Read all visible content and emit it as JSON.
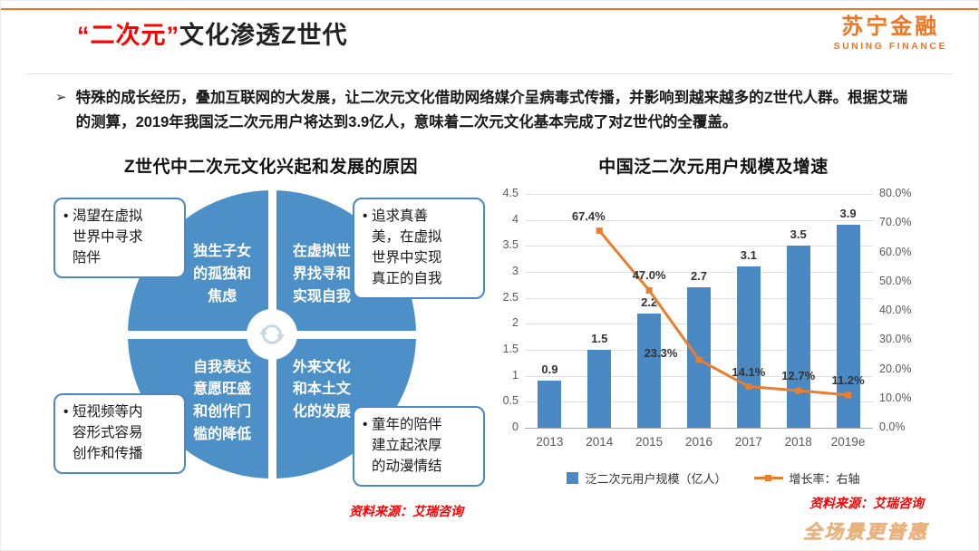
{
  "accent": {
    "orange": "#EE7623",
    "red": "#FF0000",
    "blue": "#4A89C4"
  },
  "header": {
    "title_highlight": "“二次元”",
    "title_rest": "文化渗透Z世代",
    "logo_cn": "苏宁金融",
    "logo_en": "SUNING FINANCE"
  },
  "intro": {
    "marker": "➢",
    "part1": "特殊的成长经历，叠加互联网的大发展，让二次元文化借助网络媒介呈病毒式传播，并影响到越来越多的Z世代人群。根据艾瑞的测算，2019年我国泛二次元用户将达到",
    "highlight": "3.9亿人",
    "part2": "，意味着二次元文化基本完成了对Z世代的全覆盖。"
  },
  "diagram": {
    "title": "Z世代中二次元文化兴起和发展的原因",
    "quadrants": {
      "top_left": "独生子女的孤独和焦虑",
      "top_right": "在虚拟世界找寻和实现自我",
      "bottom_left": "自我表达意愿旺盛和创作门槛的降低",
      "bottom_right": "外来文化和本土文化的发展"
    },
    "callouts": {
      "top_left": "渴望在虚拟世界中寻求陪伴",
      "top_right": "追求真善美，在虚拟世界中实现真正的自我",
      "bottom_left": "短视频等内容形式容易创作和传播",
      "bottom_right": "童年的陪伴建立起浓厚的动漫情结"
    },
    "source": "资料来源：艾瑞咨询"
  },
  "chart_data": {
    "type": "bar",
    "title": "中国泛二次元用户规模及增速",
    "categories": [
      "2013",
      "2014",
      "2015",
      "2016",
      "2017",
      "2018",
      "2019e"
    ],
    "series": [
      {
        "name": "泛二次元用户规模（亿人）",
        "kind": "bar",
        "axis": "left",
        "color": "#4A89C4",
        "values": [
          0.9,
          1.5,
          2.2,
          2.7,
          3.1,
          3.5,
          3.9
        ]
      },
      {
        "name": "增长率：右轴",
        "kind": "line",
        "axis": "right",
        "color": "#E87E2E",
        "values": [
          null,
          67.4,
          47.0,
          23.3,
          14.1,
          12.7,
          11.2
        ]
      }
    ],
    "bar_labels": [
      "0.9",
      "1.5",
      "2.2",
      "2.7",
      "3.1",
      "3.5",
      "3.9"
    ],
    "line_labels": [
      null,
      "67.4%",
      "47.0%",
      "23.3%",
      "14.1%",
      "12.7%",
      "11.2%"
    ],
    "left_axis": {
      "min": 0,
      "max": 4.5,
      "step": 0.5,
      "labels": [
        "0",
        "0.5",
        "1",
        "1.5",
        "2",
        "2.5",
        "3",
        "3.5",
        "4",
        "4.5"
      ]
    },
    "right_axis": {
      "min": 0,
      "max": 80,
      "step": 10,
      "labels": [
        "0.0%",
        "10.0%",
        "20.0%",
        "30.0%",
        "40.0%",
        "50.0%",
        "60.0%",
        "70.0%",
        "80.0%"
      ]
    },
    "grid": true,
    "legend_position": "bottom",
    "source": "资料来源：艾瑞咨询"
  },
  "footer": {
    "watermark": "全场景更普惠"
  }
}
